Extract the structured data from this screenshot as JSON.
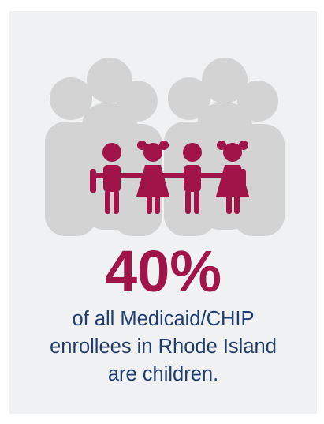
{
  "infographic": {
    "statistic": "40%",
    "caption_lines": [
      "of all Medicaid/CHIP",
      "enrollees in Rhode Island",
      "are children."
    ],
    "icons": {
      "adults": "adult-silhouette-group-icon",
      "children": "children-holding-hands-icon"
    },
    "colors": {
      "background": "#f0f1f2",
      "adults": "#d3d3d3",
      "children": "#a0144a",
      "statistic": "#a0144a",
      "caption": "#1f3d6e"
    }
  }
}
